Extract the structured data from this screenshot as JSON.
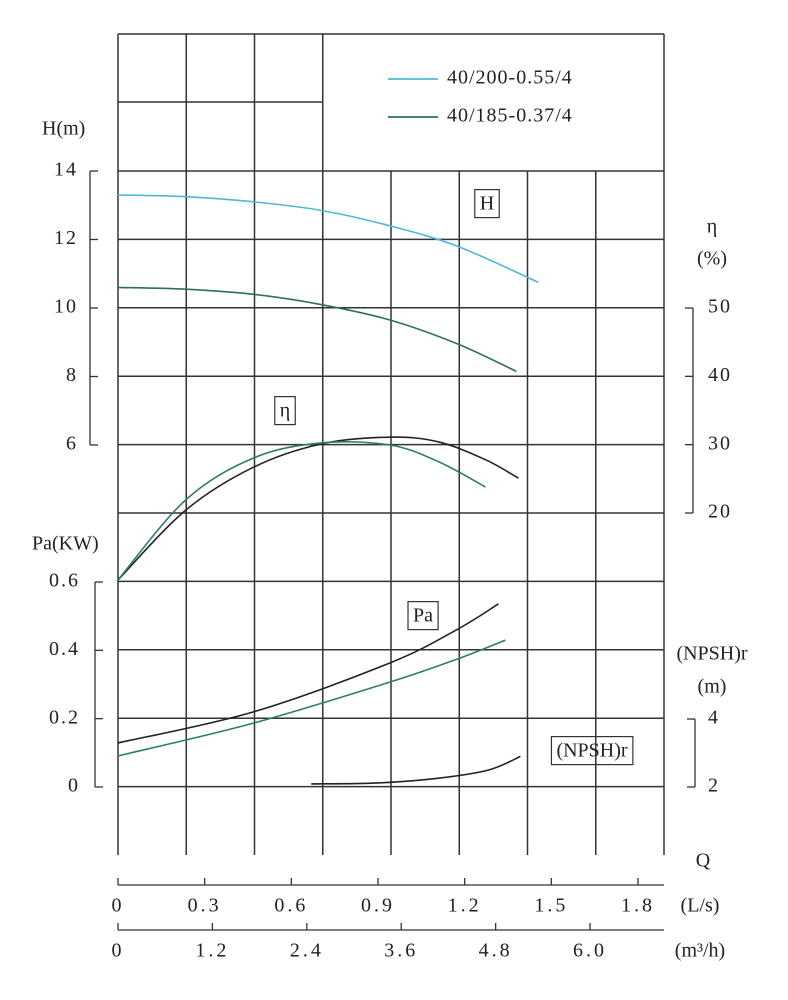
{
  "chart_data": {
    "type": "line",
    "series": [
      {
        "name": "40/200-0.55/4",
        "color": "#4fb8d6"
      },
      {
        "name": "40/185-0.37/4",
        "color": "#2e6e60"
      }
    ],
    "panels": [
      {
        "curve_label": "H",
        "axis_label": [
          "H(m)"
        ],
        "ylim": [
          6,
          14
        ],
        "yticks": [
          6,
          8,
          10,
          12,
          14
        ],
        "curves": [
          {
            "color": "#4fb8d6",
            "x": [
              0,
              0.234,
              0.469,
              0.703,
              0.941,
              1.176,
              1.455
            ],
            "values": [
              13.3,
              13.25,
              13.1,
              12.85,
              12.4,
              11.8,
              10.75
            ]
          },
          {
            "color": "#2e6e60",
            "x": [
              0,
              0.234,
              0.469,
              0.703,
              0.941,
              1.176,
              1.379
            ],
            "values": [
              10.6,
              10.55,
              10.4,
              10.1,
              9.65,
              8.95,
              8.15
            ]
          }
        ]
      },
      {
        "curve_label": "η",
        "axis_label": [
          "η",
          "(%)"
        ],
        "ylim": [
          20,
          50
        ],
        "yticks": [
          20,
          30,
          40,
          50
        ],
        "curves": [
          {
            "color": "#222222",
            "x": [
              0,
              0.234,
              0.469,
              0.703,
              0.941,
              1.11,
              1.272,
              1.386
            ],
            "values": [
              10.2,
              20.4,
              26.7,
              30.1,
              31.1,
              30.4,
              27.8,
              25.1
            ]
          },
          {
            "color": "#2e7d6b",
            "x": [
              0,
              0.234,
              0.469,
              0.703,
              0.941,
              1.11,
              1.272
            ],
            "values": [
              10.2,
              21.9,
              28.05,
              30.25,
              29.95,
              27.5,
              23.8
            ]
          }
        ]
      },
      {
        "curve_label": "Pa",
        "axis_label": [
          "Pa(KW)"
        ],
        "ylim": [
          0,
          0.6
        ],
        "yticks": [
          0,
          0.2,
          0.4,
          0.6
        ],
        "curves": [
          {
            "color": "#222222",
            "x": [
              0,
              0.469,
              0.941,
              1.176,
              1.317
            ],
            "values": [
              0.129,
              0.22,
              0.363,
              0.462,
              0.536
            ]
          },
          {
            "color": "#2e7d6b",
            "x": [
              0,
              0.469,
              0.941,
              1.176,
              1.341
            ],
            "values": [
              0.091,
              0.187,
              0.307,
              0.375,
              0.43
            ]
          }
        ]
      },
      {
        "curve_label": "(NPSH)r",
        "axis_label": [
          "(NPSH)r",
          "(m)"
        ],
        "ylim": [
          2,
          4
        ],
        "yticks": [
          2,
          4
        ],
        "curves": [
          {
            "color": "#222222",
            "x": [
              0.669,
              0.9,
              1.11,
              1.283,
              1.393
            ],
            "values": [
              2.09,
              2.12,
              2.26,
              2.5,
              2.9
            ]
          }
        ]
      }
    ],
    "x_label": "Q",
    "x_axes": [
      {
        "unit": "(L/s)",
        "xlim": [
          0,
          1.89
        ],
        "xticks": [
          0,
          0.3,
          0.6,
          0.9,
          1.2,
          1.5,
          1.8
        ]
      },
      {
        "unit": "(m³/h)",
        "xlim": [
          0,
          6.94
        ],
        "xticks": [
          0,
          1.2,
          2.4,
          3.6,
          4.8,
          {
            "value": 6,
            "label": "6.0"
          }
        ]
      }
    ]
  }
}
